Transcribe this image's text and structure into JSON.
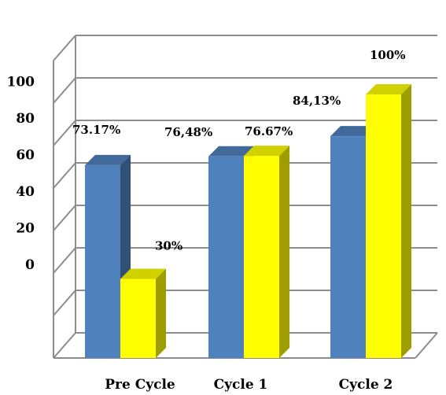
{
  "chart_data": {
    "type": "bar",
    "categories": [
      "Pre Cycle",
      "Cycle 1",
      "Cycle 2"
    ],
    "series": [
      {
        "values": [
          73.17,
          76.48,
          84.13
        ],
        "labels": [
          "73.17%",
          "76,48%",
          "84,13%"
        ],
        "color": "#4f81bd"
      },
      {
        "values": [
          30,
          76.67,
          100
        ],
        "labels": [
          "30%",
          "76.67%",
          "100%"
        ],
        "color": "#ffff00"
      }
    ],
    "y_tick_labels": [
      "0",
      "20",
      "40",
      "60",
      "80",
      "100"
    ],
    "ylim": [
      0,
      100
    ],
    "grid": true,
    "legend": false,
    "style": "3d"
  }
}
